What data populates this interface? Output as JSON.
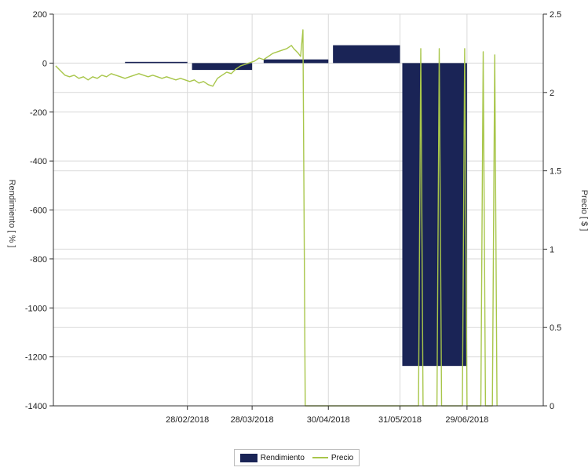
{
  "colors": {
    "bar": "#1a2456",
    "line": "#a8c64a",
    "grid": "#d9d9d9",
    "axis": "#333333"
  },
  "chart_data": {
    "type": "bar+line",
    "x_ticks": [
      "28/02/2018",
      "28/03/2018",
      "30/04/2018",
      "31/05/2018",
      "29/06/2018"
    ],
    "y_left": {
      "label": "Rendimiento [ % ]",
      "ticks": [
        "200",
        "0",
        "-200",
        "-400",
        "-600",
        "-800",
        "-1000",
        "-1200",
        "-1400"
      ],
      "range": [
        -1400,
        200
      ]
    },
    "y_right": {
      "label": "Precio [ $ ]",
      "ticks": [
        "2.5",
        "2",
        "1.5",
        "1",
        "0.5",
        "0"
      ],
      "range": [
        0,
        2.5
      ]
    },
    "bars": {
      "name": "Rendimiento",
      "periods": [
        {
          "start": "2018-02-01",
          "end": "2018-02-28",
          "value": 5
        },
        {
          "start": "2018-03-02",
          "end": "2018-03-28",
          "value": -28
        },
        {
          "start": "2018-04-02",
          "end": "2018-04-30",
          "value": 15
        },
        {
          "start": "2018-05-02",
          "end": "2018-05-31",
          "value": 73
        },
        {
          "start": "2018-06-01",
          "end": "2018-06-29",
          "value": -1237
        }
      ]
    },
    "line": {
      "name": "Precio",
      "points": [
        [
          "2018-01-02",
          2.17
        ],
        [
          "2018-01-04",
          2.14
        ],
        [
          "2018-01-06",
          2.11
        ],
        [
          "2018-01-08",
          2.1
        ],
        [
          "2018-01-10",
          2.11
        ],
        [
          "2018-01-12",
          2.09
        ],
        [
          "2018-01-14",
          2.1
        ],
        [
          "2018-01-16",
          2.08
        ],
        [
          "2018-01-18",
          2.1
        ],
        [
          "2018-01-20",
          2.09
        ],
        [
          "2018-01-22",
          2.11
        ],
        [
          "2018-01-24",
          2.1
        ],
        [
          "2018-01-26",
          2.12
        ],
        [
          "2018-01-28",
          2.11
        ],
        [
          "2018-01-30",
          2.1
        ],
        [
          "2018-02-01",
          2.09
        ],
        [
          "2018-02-03",
          2.1
        ],
        [
          "2018-02-05",
          2.11
        ],
        [
          "2018-02-07",
          2.12
        ],
        [
          "2018-02-09",
          2.11
        ],
        [
          "2018-02-11",
          2.1
        ],
        [
          "2018-02-13",
          2.11
        ],
        [
          "2018-02-15",
          2.1
        ],
        [
          "2018-02-17",
          2.09
        ],
        [
          "2018-02-19",
          2.1
        ],
        [
          "2018-02-21",
          2.09
        ],
        [
          "2018-02-23",
          2.08
        ],
        [
          "2018-02-25",
          2.09
        ],
        [
          "2018-02-27",
          2.08
        ],
        [
          "2018-03-01",
          2.07
        ],
        [
          "2018-03-03",
          2.08
        ],
        [
          "2018-03-05",
          2.06
        ],
        [
          "2018-03-07",
          2.07
        ],
        [
          "2018-03-09",
          2.05
        ],
        [
          "2018-03-11",
          2.04
        ],
        [
          "2018-03-13",
          2.09
        ],
        [
          "2018-03-15",
          2.11
        ],
        [
          "2018-03-17",
          2.13
        ],
        [
          "2018-03-19",
          2.12
        ],
        [
          "2018-03-21",
          2.15
        ],
        [
          "2018-03-23",
          2.17
        ],
        [
          "2018-03-25",
          2.18
        ],
        [
          "2018-03-27",
          2.19
        ],
        [
          "2018-03-29",
          2.2
        ],
        [
          "2018-03-31",
          2.22
        ],
        [
          "2018-04-02",
          2.21
        ],
        [
          "2018-04-04",
          2.23
        ],
        [
          "2018-04-06",
          2.25
        ],
        [
          "2018-04-08",
          2.26
        ],
        [
          "2018-04-10",
          2.27
        ],
        [
          "2018-04-12",
          2.28
        ],
        [
          "2018-04-14",
          2.3
        ],
        [
          "2018-04-15",
          2.28
        ],
        [
          "2018-04-17",
          2.25
        ],
        [
          "2018-04-18",
          2.23
        ],
        [
          "2018-04-19",
          2.4
        ],
        [
          "2018-04-20",
          0.0
        ],
        [
          "2018-06-08",
          0.0
        ],
        [
          "2018-06-09",
          2.28
        ],
        [
          "2018-06-10",
          0.0
        ],
        [
          "2018-06-16",
          0.0
        ],
        [
          "2018-06-17",
          2.28
        ],
        [
          "2018-06-18",
          0.0
        ],
        [
          "2018-06-27",
          0.0
        ],
        [
          "2018-06-28",
          2.28
        ],
        [
          "2018-06-29",
          0.0
        ],
        [
          "2018-07-05",
          0.0
        ],
        [
          "2018-07-06",
          2.26
        ],
        [
          "2018-07-07",
          0.0
        ],
        [
          "2018-07-10",
          0.0
        ],
        [
          "2018-07-11",
          2.24
        ],
        [
          "2018-07-12",
          0.0
        ]
      ]
    },
    "legend": {
      "placement": "bottom-center",
      "items": [
        "Rendimiento",
        "Precio"
      ]
    }
  }
}
